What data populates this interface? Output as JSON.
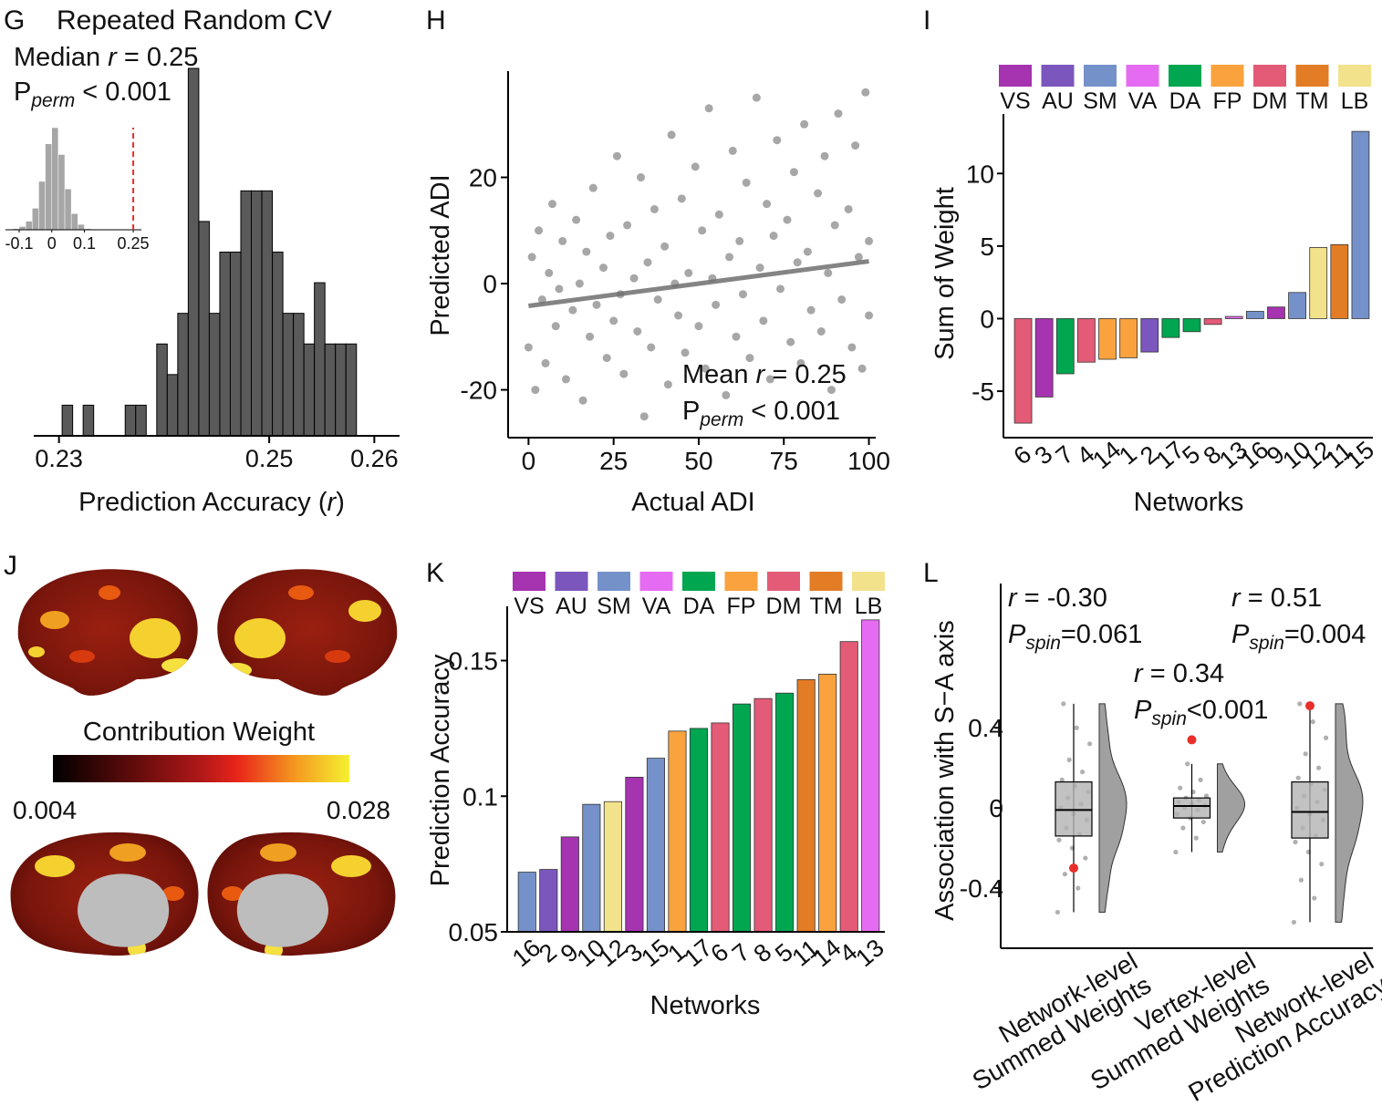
{
  "chart_data": [
    {
      "panel": "G",
      "type": "histogram",
      "title": "Repeated Random CV",
      "annotations": [
        [
          "Median ",
          "r",
          " = 0.25"
        ],
        [
          "P",
          "perm",
          " < 0.001"
        ]
      ],
      "xlabel": [
        "Prediction Accuracy (",
        "r",
        ")"
      ],
      "bins": [
        0.2303,
        0.2313,
        0.2323,
        0.2333,
        0.2343,
        0.2353,
        0.2363,
        0.2373,
        0.2383,
        0.2393,
        0.2403,
        0.2413,
        0.2423,
        0.2433,
        0.2443,
        0.2453,
        0.2463,
        0.2473,
        0.2483,
        0.2493,
        0.2503,
        0.2513,
        0.2523,
        0.2533,
        0.2543,
        0.2553,
        0.2563,
        0.2573,
        0.2583
      ],
      "counts": [
        1,
        0,
        1,
        0,
        0,
        0,
        1,
        1,
        0,
        3,
        2,
        4,
        12,
        7,
        4,
        6,
        6,
        8,
        8,
        8,
        6,
        4,
        4,
        3,
        5,
        3,
        3,
        3
      ],
      "color": "#5a5a5a",
      "xlim": [
        0.2276,
        0.2624
      ],
      "xticks": [
        0.23,
        0.25,
        0.26
      ],
      "ylim": [
        0,
        12
      ],
      "inset": {
        "bins": [
          -0.12,
          -0.1,
          -0.08,
          -0.06,
          -0.04,
          -0.02,
          0,
          0.02,
          0.04,
          0.06,
          0.08,
          0.1,
          0.12
        ],
        "counts": [
          1,
          3,
          8,
          20,
          45,
          80,
          95,
          70,
          38,
          15,
          5,
          1
        ],
        "color": "#a6a6a6",
        "xlim": [
          -0.142,
          0.275
        ],
        "xticks": [
          -0.1,
          0,
          0.1,
          0.25
        ],
        "ylim": [
          0,
          95
        ],
        "observed": 0.25,
        "observed_color": "#e8302a"
      }
    },
    {
      "panel": "H",
      "type": "scatter",
      "ylabel": "Predicted ADI",
      "xlabel": "Actual ADI",
      "annotations": [
        [
          "Mean ",
          "r",
          " = 0.25"
        ],
        [
          "P",
          "perm",
          " < 0.001"
        ]
      ],
      "x": [
        0,
        1,
        2,
        3,
        4,
        5,
        6,
        7,
        8,
        9,
        10,
        11,
        13,
        14,
        15,
        16,
        17,
        18,
        19,
        20,
        22,
        23,
        24,
        25,
        26,
        27,
        28,
        29,
        31,
        32,
        33,
        34,
        35,
        36,
        37,
        38,
        40,
        41,
        42,
        43,
        44,
        45,
        46,
        47,
        49,
        50,
        51,
        52,
        53,
        54,
        55,
        56,
        58,
        59,
        60,
        61,
        62,
        63,
        64,
        65,
        67,
        68,
        69,
        70,
        71,
        72,
        73,
        74,
        76,
        77,
        78,
        79,
        80,
        81,
        82,
        83,
        85,
        86,
        87,
        88,
        89,
        90,
        91,
        92,
        94,
        95,
        96,
        97,
        98,
        99,
        100,
        100
      ],
      "values": [
        -12,
        5,
        -20,
        10,
        -3,
        -15,
        2,
        15,
        -8,
        -1,
        8,
        -18,
        -5,
        12,
        0,
        -22,
        6,
        -10,
        18,
        -4,
        3,
        -14,
        9,
        -7,
        24,
        -2,
        -17,
        11,
        1,
        -9,
        20,
        -25,
        4,
        -12,
        14,
        -3,
        7,
        -19,
        28,
        0,
        -6,
        16,
        -13,
        2,
        22,
        -8,
        10,
        -16,
        33,
        1,
        -4,
        13,
        -21,
        5,
        25,
        -10,
        8,
        -2,
        19,
        -14,
        35,
        3,
        -7,
        15,
        -18,
        9,
        27,
        -1,
        12,
        -11,
        21,
        4,
        -15,
        30,
        6,
        -5,
        17,
        -9,
        24,
        2,
        -20,
        11,
        32,
        -3,
        14,
        -12,
        26,
        5,
        -16,
        36,
        8,
        -6
      ],
      "color": "#8a8a8a",
      "fit": {
        "x": [
          0,
          100
        ],
        "values": [
          -4.2,
          4.2
        ],
        "color": "#6e6e6e"
      },
      "xlim": [
        -6,
        102
      ],
      "xticks": [
        0,
        25,
        50,
        75,
        100
      ],
      "ylim": [
        -29,
        40
      ],
      "yticks": [
        -20,
        0,
        20
      ]
    },
    {
      "panel": "I",
      "type": "bar",
      "ylabel": "Sum of Weight",
      "xlabel": "Networks",
      "legend": [
        {
          "name": "VS",
          "color": "#a633b0"
        },
        {
          "name": "AU",
          "color": "#7b56bd"
        },
        {
          "name": "SM",
          "color": "#7591c9"
        },
        {
          "name": "VA",
          "color": "#e56cf2"
        },
        {
          "name": "DA",
          "color": "#00a650"
        },
        {
          "name": "FP",
          "color": "#f9a23e"
        },
        {
          "name": "DM",
          "color": "#e35b77"
        },
        {
          "name": "TM",
          "color": "#e27c25"
        },
        {
          "name": "LB",
          "color": "#f3e28c"
        }
      ],
      "categories": [
        "6",
        "3",
        "7",
        "4",
        "14",
        "1",
        "2",
        "17",
        "5",
        "8",
        "13",
        "16",
        "9",
        "10",
        "12",
        "11",
        "15"
      ],
      "values": [
        -7.2,
        -5.4,
        -3.8,
        -3.0,
        -2.8,
        -2.7,
        -2.3,
        -1.3,
        -0.9,
        -0.4,
        0.15,
        0.5,
        0.8,
        1.8,
        4.9,
        5.1,
        12.9
      ],
      "colors": [
        "#e35b77",
        "#a633b0",
        "#00a650",
        "#e35b77",
        "#f9a23e",
        "#f9a23e",
        "#7b56bd",
        "#00a650",
        "#00a650",
        "#e35b77",
        "#e56cf2",
        "#7591c9",
        "#a633b0",
        "#7591c9",
        "#f3e28c",
        "#e27c25",
        "#7591c9"
      ],
      "ylim": [
        -8.2,
        14.1
      ],
      "yticks": [
        -5,
        0,
        5,
        10
      ]
    },
    {
      "panel": "K",
      "type": "bar",
      "ylabel": "Prediction Accuracy",
      "xlabel": "Networks",
      "legend": [
        {
          "name": "VS",
          "color": "#a633b0"
        },
        {
          "name": "AU",
          "color": "#7b56bd"
        },
        {
          "name": "SM",
          "color": "#7591c9"
        },
        {
          "name": "VA",
          "color": "#e56cf2"
        },
        {
          "name": "DA",
          "color": "#00a650"
        },
        {
          "name": "FP",
          "color": "#f9a23e"
        },
        {
          "name": "DM",
          "color": "#e35b77"
        },
        {
          "name": "TM",
          "color": "#e27c25"
        },
        {
          "name": "LB",
          "color": "#f3e28c"
        }
      ],
      "categories": [
        "16",
        "2",
        "9",
        "10",
        "12",
        "3",
        "15",
        "1",
        "17",
        "6",
        "7",
        "8",
        "5",
        "11",
        "14",
        "4",
        "13"
      ],
      "values": [
        0.072,
        0.073,
        0.085,
        0.097,
        0.098,
        0.107,
        0.114,
        0.124,
        0.125,
        0.127,
        0.134,
        0.136,
        0.138,
        0.143,
        0.145,
        0.157,
        0.165
      ],
      "colors": [
        "#7591c9",
        "#7b56bd",
        "#a633b0",
        "#7591c9",
        "#f3e28c",
        "#a633b0",
        "#7591c9",
        "#f9a23e",
        "#00a650",
        "#e35b77",
        "#00a650",
        "#e35b77",
        "#00a650",
        "#e27c25",
        "#f9a23e",
        "#e35b77",
        "#e56cf2"
      ],
      "ylim": [
        0.05,
        0.17
      ],
      "yticks": [
        0.05,
        0.1,
        0.15
      ]
    },
    {
      "panel": "L",
      "type": "box",
      "ylabel": "Association with S−A axis",
      "categories": [
        [
          "Network-level",
          "Summed Weights"
        ],
        [
          "Vertex-level",
          "Summed Weights"
        ],
        [
          "Network-level",
          "Prediction Accuracy"
        ]
      ],
      "annotations": [
        [
          [
            "r",
            " = -0.30"
          ],
          [
            "P",
            "spin",
            "=0.061"
          ]
        ],
        [
          [
            "r",
            " = 0.34"
          ],
          [
            "P",
            "spin",
            "<0.001"
          ]
        ],
        [
          [
            "r",
            " = 0.51"
          ],
          [
            "P",
            "spin",
            "=0.004"
          ]
        ]
      ],
      "boxes": [
        {
          "min": -0.52,
          "q1": -0.14,
          "median": -0.01,
          "q3": 0.13,
          "max": 0.52
        },
        {
          "min": -0.22,
          "q1": -0.05,
          "median": 0.01,
          "q3": 0.05,
          "max": 0.22
        },
        {
          "min": -0.57,
          "q1": -0.15,
          "median": -0.02,
          "q3": 0.13,
          "max": 0.52
        }
      ],
      "points": [
        [
          -0.52,
          -0.4,
          -0.33,
          -0.25,
          -0.2,
          -0.16,
          -0.13,
          -0.1,
          -0.06,
          -0.03,
          0,
          0.02,
          0.05,
          0.08,
          0.11,
          0.14,
          0.18,
          0.24,
          0.32,
          0.4,
          0.52
        ],
        [
          -0.22,
          -0.15,
          -0.1,
          -0.07,
          -0.05,
          -0.03,
          -0.01,
          0,
          0.01,
          0.02,
          0.03,
          0.04,
          0.05,
          0.06,
          0.08,
          0.1,
          0.14,
          0.22
        ],
        [
          -0.57,
          -0.45,
          -0.36,
          -0.28,
          -0.22,
          -0.17,
          -0.14,
          -0.1,
          -0.06,
          -0.03,
          0,
          0.03,
          0.06,
          0.09,
          0.12,
          0.15,
          0.2,
          0.27,
          0.35,
          0.43,
          0.52
        ]
      ],
      "observed": [
        -0.3,
        0.34,
        0.51
      ],
      "observed_color": "#e8302a",
      "box_color": "#b3b3b3",
      "point_color": "#b0b0b0",
      "ylim": [
        -0.7,
        1.12
      ],
      "yticks": [
        -0.4,
        0,
        0.4
      ]
    }
  ],
  "brain_panel": {
    "panel": "J",
    "colorbar_label": "Contribution Weight",
    "colorbar_min": 0.004,
    "colorbar_max": 0.028
  }
}
